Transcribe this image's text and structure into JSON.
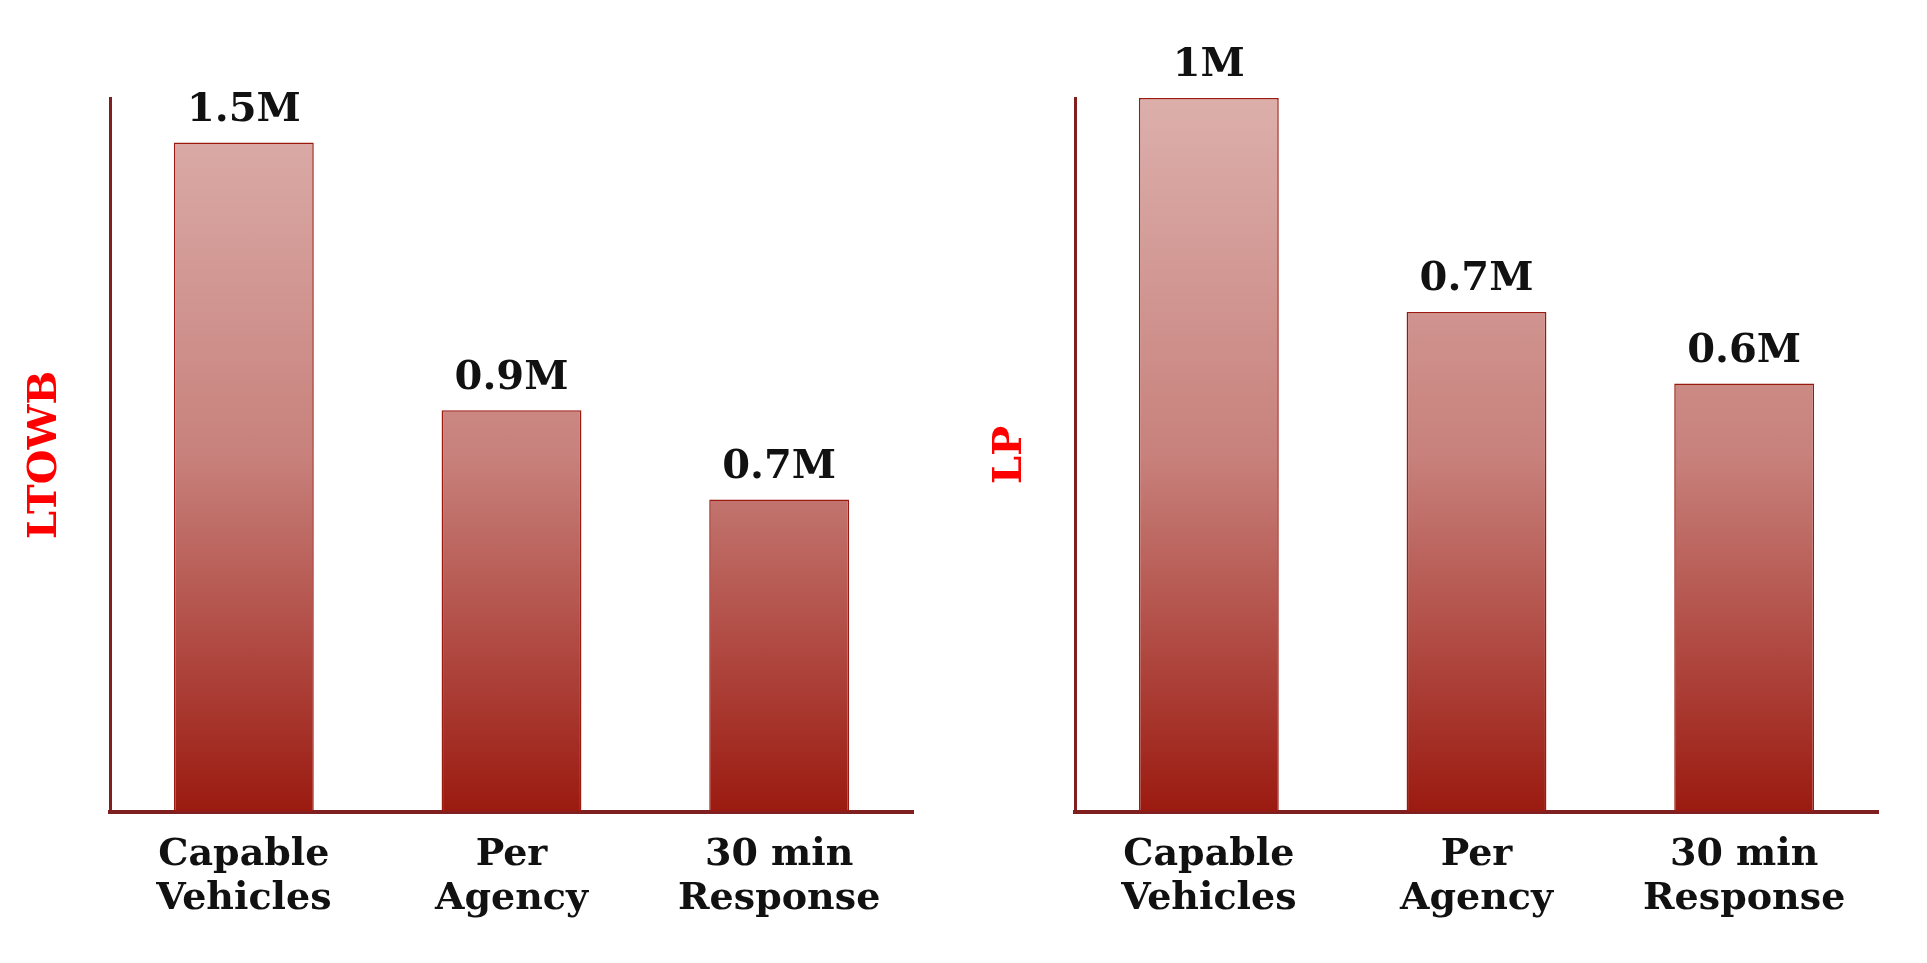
{
  "chart_data": [
    {
      "type": "bar",
      "ylabel": "LTOWB",
      "categories": [
        "Capable Vehicles",
        "Per Agency",
        "30 min Response"
      ],
      "values": [
        1.5,
        0.9,
        0.7
      ],
      "value_labels": [
        "1.5M",
        "0.9M",
        "0.7M"
      ],
      "color": "#9b1a10",
      "grid": false,
      "legend": false,
      "tick_labels": "x"
    },
    {
      "type": "bar",
      "ylabel": "LP",
      "categories": [
        "Capable Vehicles",
        "Per Agency",
        "30 min Response"
      ],
      "values": [
        1,
        0.7,
        0.6
      ],
      "value_labels": [
        "1M",
        "0.7M",
        "0.6M"
      ],
      "color": "#9b1a10",
      "grid": false,
      "legend": false,
      "tick_labels": "x"
    }
  ]
}
